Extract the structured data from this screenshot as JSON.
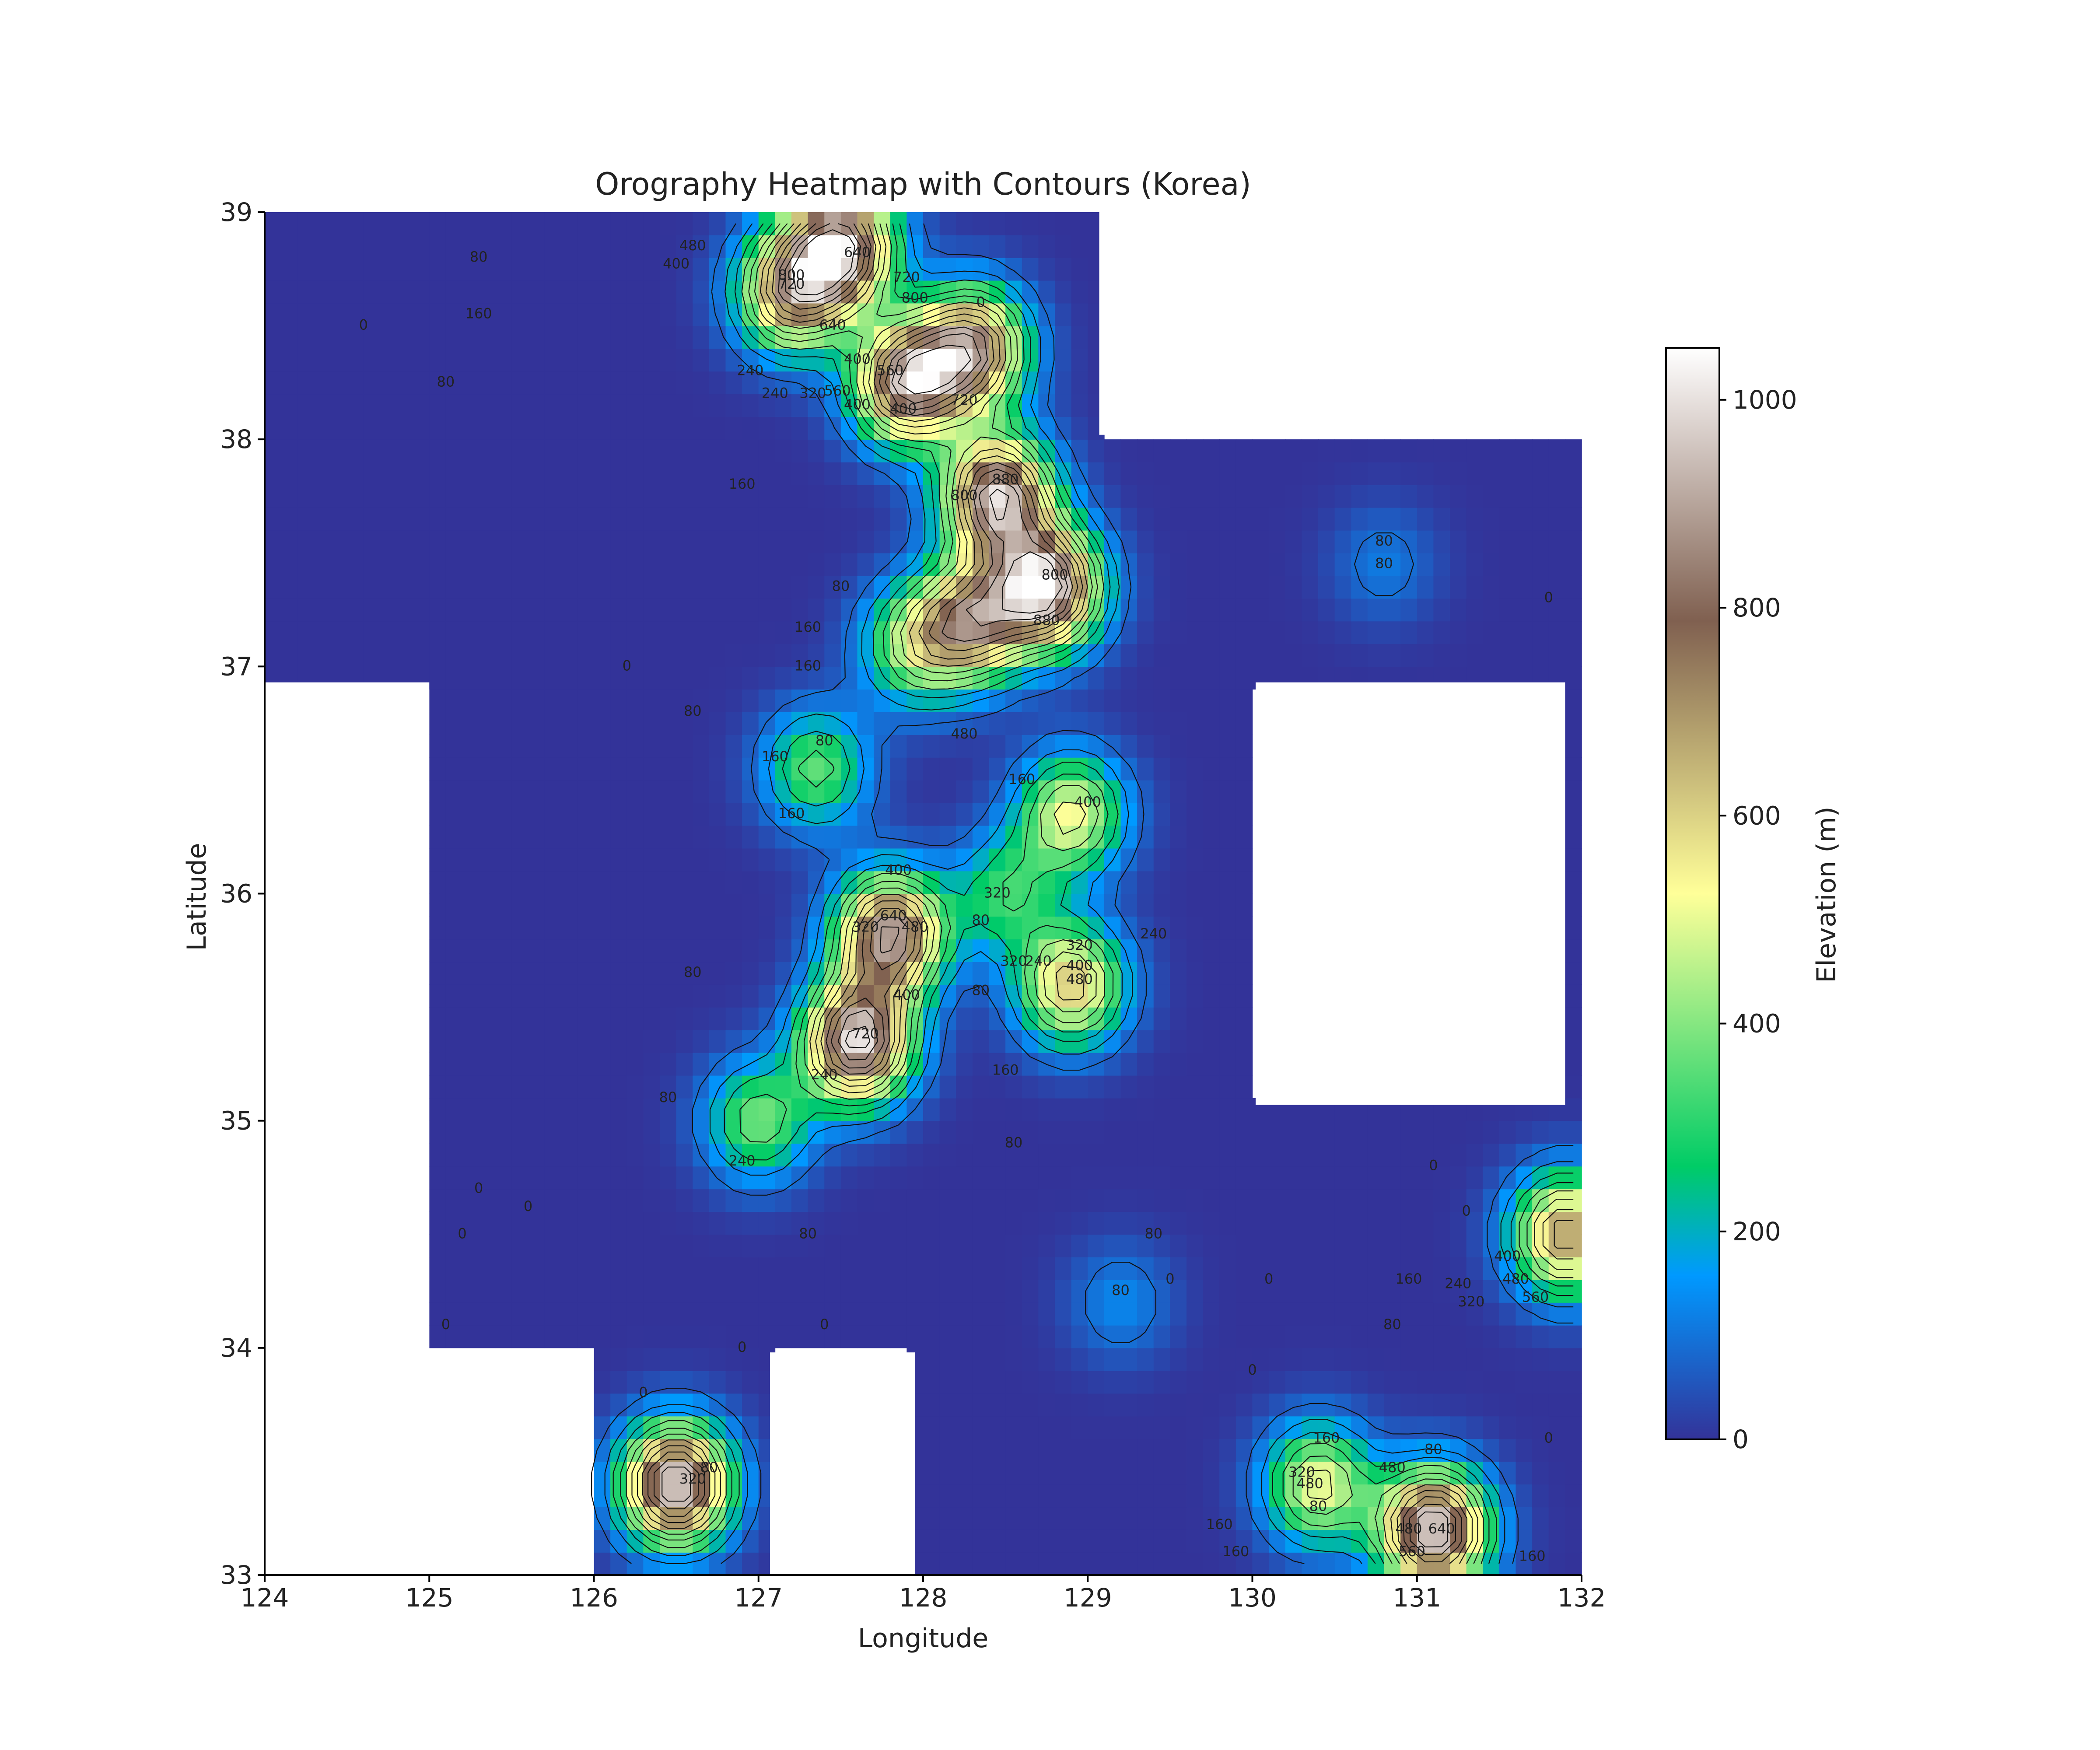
{
  "chart_data": {
    "type": "heatmap",
    "title": "Orography Heatmap with Contours (Korea)",
    "xlabel": "Longitude",
    "ylabel": "Latitude",
    "xlim": [
      124,
      132
    ],
    "ylim": [
      33,
      39
    ],
    "xticks": [
      "124",
      "125",
      "126",
      "127",
      "128",
      "129",
      "130",
      "131",
      "132"
    ],
    "yticks": [
      "33",
      "34",
      "35",
      "36",
      "37",
      "38",
      "39"
    ],
    "colorbar": {
      "label": "Elevation (m)",
      "range": [
        0,
        1050
      ],
      "ticks": [
        "0",
        "200",
        "400",
        "600",
        "800",
        "1000"
      ],
      "colormap": "terrain",
      "colors": [
        "#333399",
        "#0099ff",
        "#00cc66",
        "#ffff99",
        "#806050",
        "#ffffff"
      ]
    },
    "grid": false,
    "masked_regions": [
      {
        "lon": [
          124,
          125
        ],
        "lat": [
          33,
          36.93
        ]
      },
      {
        "lon": [
          125,
          126
        ],
        "lat": [
          33,
          33.98
        ]
      },
      {
        "lon": [
          127.07,
          127.95
        ],
        "lat": [
          33,
          33.98
        ]
      },
      {
        "lon": [
          129.07,
          132
        ],
        "lat": [
          38.02,
          39
        ]
      },
      {
        "lon": [
          130.02,
          131.9
        ],
        "lat": [
          35.07,
          36.93
        ]
      }
    ],
    "peaks": [
      {
        "lon": 127.9,
        "lat": 38.25,
        "elev": 900
      },
      {
        "lon": 128.3,
        "lat": 38.4,
        "elev": 820
      },
      {
        "lon": 127.5,
        "lat": 38.85,
        "elev": 940
      },
      {
        "lon": 127.2,
        "lat": 38.65,
        "elev": 720
      },
      {
        "lon": 128.45,
        "lat": 37.75,
        "elev": 960
      },
      {
        "lon": 128.75,
        "lat": 37.35,
        "elev": 1000
      },
      {
        "lon": 128.3,
        "lat": 37.2,
        "elev": 700
      },
      {
        "lon": 127.95,
        "lat": 37.1,
        "elev": 420
      },
      {
        "lon": 127.35,
        "lat": 36.55,
        "elev": 360
      },
      {
        "lon": 128.9,
        "lat": 36.35,
        "elev": 520
      },
      {
        "lon": 127.8,
        "lat": 35.82,
        "elev": 900
      },
      {
        "lon": 127.6,
        "lat": 35.35,
        "elev": 1000
      },
      {
        "lon": 128.9,
        "lat": 35.6,
        "elev": 620
      },
      {
        "lon": 127.0,
        "lat": 35.0,
        "elev": 380
      },
      {
        "lon": 128.5,
        "lat": 36.0,
        "elev": 300
      },
      {
        "lon": 126.5,
        "lat": 33.4,
        "elev": 1000
      },
      {
        "lon": 131.9,
        "lat": 34.5,
        "elev": 700
      },
      {
        "lon": 131.1,
        "lat": 33.2,
        "elev": 1000
      },
      {
        "lon": 130.4,
        "lat": 33.4,
        "elev": 520
      },
      {
        "lon": 129.2,
        "lat": 34.2,
        "elev": 130
      },
      {
        "lon": 130.8,
        "lat": 37.45,
        "elev": 110
      }
    ],
    "contour_levels": [
      80,
      160,
      240,
      320,
      400,
      480,
      560,
      640,
      720,
      800,
      880,
      960
    ],
    "contour_labels": [
      {
        "text": "80",
        "lon": 125.3,
        "lat": 38.8
      },
      {
        "text": "160",
        "lon": 125.3,
        "lat": 38.55
      },
      {
        "text": "80",
        "lon": 125.1,
        "lat": 38.25
      },
      {
        "text": "0",
        "lon": 124.6,
        "lat": 38.5
      },
      {
        "text": "480",
        "lon": 126.6,
        "lat": 38.85
      },
      {
        "text": "400",
        "lon": 126.5,
        "lat": 38.77
      },
      {
        "text": "640",
        "lon": 127.6,
        "lat": 38.82
      },
      {
        "text": "800",
        "lon": 127.2,
        "lat": 38.72
      },
      {
        "text": "720",
        "lon": 127.2,
        "lat": 38.68
      },
      {
        "text": "720",
        "lon": 127.9,
        "lat": 38.71
      },
      {
        "text": "800",
        "lon": 127.95,
        "lat": 38.62
      },
      {
        "text": "640",
        "lon": 127.45,
        "lat": 38.5
      },
      {
        "text": "0",
        "lon": 128.35,
        "lat": 38.6
      },
      {
        "text": "240",
        "lon": 126.95,
        "lat": 38.3
      },
      {
        "text": "400",
        "lon": 127.6,
        "lat": 38.35
      },
      {
        "text": "560",
        "lon": 127.8,
        "lat": 38.3
      },
      {
        "text": "240",
        "lon": 127.1,
        "lat": 38.2
      },
      {
        "text": "320",
        "lon": 127.33,
        "lat": 38.2
      },
      {
        "text": "560",
        "lon": 127.48,
        "lat": 38.21
      },
      {
        "text": "400",
        "lon": 127.6,
        "lat": 38.15
      },
      {
        "text": "400",
        "lon": 127.88,
        "lat": 38.13
      },
      {
        "text": "720",
        "lon": 128.25,
        "lat": 38.17
      },
      {
        "text": "160",
        "lon": 126.9,
        "lat": 37.8
      },
      {
        "text": "800",
        "lon": 128.25,
        "lat": 37.75
      },
      {
        "text": "880",
        "lon": 128.5,
        "lat": 37.82
      },
      {
        "text": "80",
        "lon": 130.8,
        "lat": 37.55
      },
      {
        "text": "80",
        "lon": 130.8,
        "lat": 37.45
      },
      {
        "text": "80",
        "lon": 127.5,
        "lat": 37.35
      },
      {
        "text": "800",
        "lon": 128.8,
        "lat": 37.4
      },
      {
        "text": "880",
        "lon": 128.75,
        "lat": 37.2
      },
      {
        "text": "0",
        "lon": 131.8,
        "lat": 37.3
      },
      {
        "text": "160",
        "lon": 127.3,
        "lat": 37.17
      },
      {
        "text": "160",
        "lon": 127.3,
        "lat": 37.0
      },
      {
        "text": "0",
        "lon": 126.2,
        "lat": 37.0
      },
      {
        "text": "80",
        "lon": 126.6,
        "lat": 36.8
      },
      {
        "text": "480",
        "lon": 128.25,
        "lat": 36.7
      },
      {
        "text": "80",
        "lon": 127.4,
        "lat": 36.67
      },
      {
        "text": "160",
        "lon": 127.1,
        "lat": 36.6
      },
      {
        "text": "160",
        "lon": 128.6,
        "lat": 36.5
      },
      {
        "text": "400",
        "lon": 129.0,
        "lat": 36.4
      },
      {
        "text": "160",
        "lon": 127.2,
        "lat": 36.35
      },
      {
        "text": "400",
        "lon": 127.85,
        "lat": 36.1
      },
      {
        "text": "320",
        "lon": 128.45,
        "lat": 36.0
      },
      {
        "text": "640",
        "lon": 127.82,
        "lat": 35.9
      },
      {
        "text": "320",
        "lon": 127.65,
        "lat": 35.85
      },
      {
        "text": "480",
        "lon": 127.95,
        "lat": 35.85
      },
      {
        "text": "80",
        "lon": 128.35,
        "lat": 35.88
      },
      {
        "text": "240",
        "lon": 129.4,
        "lat": 35.82
      },
      {
        "text": "320",
        "lon": 128.95,
        "lat": 35.77
      },
      {
        "text": "320",
        "lon": 128.55,
        "lat": 35.7
      },
      {
        "text": "240",
        "lon": 128.7,
        "lat": 35.7
      },
      {
        "text": "400",
        "lon": 128.95,
        "lat": 35.68
      },
      {
        "text": "480",
        "lon": 128.95,
        "lat": 35.62
      },
      {
        "text": "80",
        "lon": 126.6,
        "lat": 35.65
      },
      {
        "text": "400",
        "lon": 127.9,
        "lat": 35.55
      },
      {
        "text": "80",
        "lon": 128.35,
        "lat": 35.57
      },
      {
        "text": "720",
        "lon": 127.65,
        "lat": 35.38
      },
      {
        "text": "240",
        "lon": 127.4,
        "lat": 35.2
      },
      {
        "text": "160",
        "lon": 128.5,
        "lat": 35.22
      },
      {
        "text": "80",
        "lon": 126.45,
        "lat": 35.1
      },
      {
        "text": "80",
        "lon": 128.55,
        "lat": 34.9
      },
      {
        "text": "240",
        "lon": 126.9,
        "lat": 34.82
      },
      {
        "text": "0",
        "lon": 131.1,
        "lat": 34.8
      },
      {
        "text": "0",
        "lon": 125.3,
        "lat": 34.7
      },
      {
        "text": "0",
        "lon": 125.6,
        "lat": 34.62
      },
      {
        "text": "0",
        "lon": 131.3,
        "lat": 34.6
      },
      {
        "text": "0",
        "lon": 125.2,
        "lat": 34.5
      },
      {
        "text": "80",
        "lon": 127.3,
        "lat": 34.5
      },
      {
        "text": "80",
        "lon": 129.4,
        "lat": 34.5
      },
      {
        "text": "400",
        "lon": 131.55,
        "lat": 34.4
      },
      {
        "text": "160",
        "lon": 130.95,
        "lat": 34.3
      },
      {
        "text": "240",
        "lon": 131.25,
        "lat": 34.28
      },
      {
        "text": "480",
        "lon": 131.6,
        "lat": 34.3
      },
      {
        "text": "560",
        "lon": 131.72,
        "lat": 34.22
      },
      {
        "text": "320",
        "lon": 131.33,
        "lat": 34.2
      },
      {
        "text": "0",
        "lon": 129.5,
        "lat": 34.3
      },
      {
        "text": "0",
        "lon": 130.1,
        "lat": 34.3
      },
      {
        "text": "80",
        "lon": 129.2,
        "lat": 34.25
      },
      {
        "text": "80",
        "lon": 130.85,
        "lat": 34.1
      },
      {
        "text": "0",
        "lon": 125.1,
        "lat": 34.1
      },
      {
        "text": "0",
        "lon": 127.4,
        "lat": 34.1
      },
      {
        "text": "0",
        "lon": 126.9,
        "lat": 34.0
      },
      {
        "text": "0",
        "lon": 130.0,
        "lat": 33.9
      },
      {
        "text": "0",
        "lon": 126.3,
        "lat": 33.8
      },
      {
        "text": "160",
        "lon": 130.45,
        "lat": 33.6
      },
      {
        "text": "0",
        "lon": 131.8,
        "lat": 33.6
      },
      {
        "text": "80",
        "lon": 131.1,
        "lat": 33.55
      },
      {
        "text": "80",
        "lon": 126.7,
        "lat": 33.47
      },
      {
        "text": "480",
        "lon": 130.85,
        "lat": 33.47
      },
      {
        "text": "320",
        "lon": 126.6,
        "lat": 33.42
      },
      {
        "text": "320",
        "lon": 130.3,
        "lat": 33.45
      },
      {
        "text": "480",
        "lon": 130.35,
        "lat": 33.4
      },
      {
        "text": "80",
        "lon": 130.4,
        "lat": 33.3
      },
      {
        "text": "160",
        "lon": 129.8,
        "lat": 33.22
      },
      {
        "text": "480",
        "lon": 130.95,
        "lat": 33.2
      },
      {
        "text": "640",
        "lon": 131.15,
        "lat": 33.2
      },
      {
        "text": "560",
        "lon": 130.97,
        "lat": 33.1
      },
      {
        "text": "160",
        "lon": 129.9,
        "lat": 33.1
      },
      {
        "text": "160",
        "lon": 131.7,
        "lat": 33.08
      }
    ]
  }
}
